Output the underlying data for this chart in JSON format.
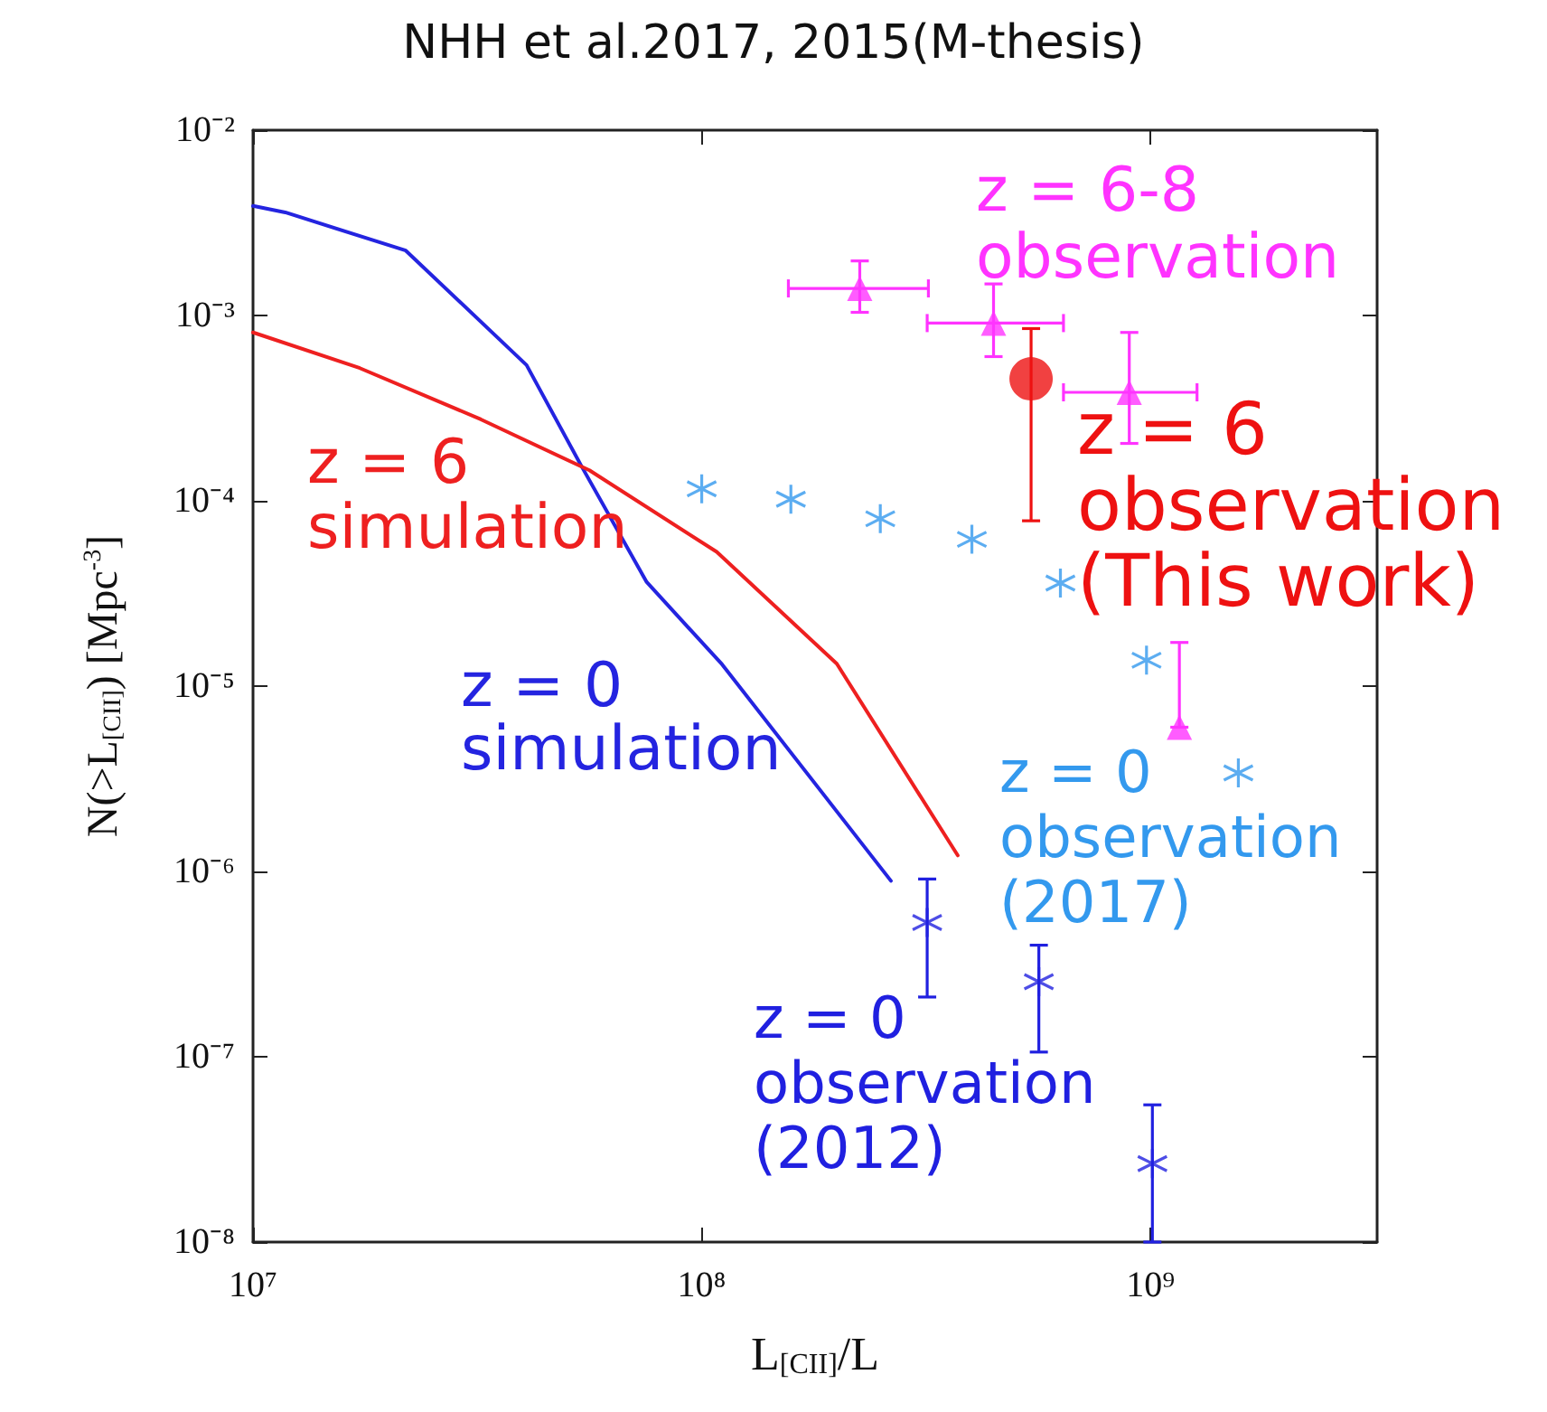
{
  "chart_data": {
    "type": "scatter",
    "title": "NHH et al.2017, 2015(M-thesis)",
    "xlabel": "L$_{[CII]}$/L",
    "ylabel": "N(>L$_{[CII]}$) [Mpc$^{-3}$]",
    "log": "xy",
    "grid": false,
    "legend": false,
    "xlim": [
      10000000,
      3200000000
    ],
    "ylim": [
      1e-08,
      0.01
    ],
    "xticks": [
      {
        "value": 10000000,
        "label": "10⁷"
      },
      {
        "value": 100000000,
        "label": "10⁸"
      },
      {
        "value": 1000000000,
        "label": "10⁹"
      }
    ],
    "yticks": [
      {
        "value": 1e-08,
        "label": "10⁻⁸"
      },
      {
        "value": 1e-07,
        "label": "10⁻⁷"
      },
      {
        "value": 1e-06,
        "label": "10⁻⁶"
      },
      {
        "value": 1e-05,
        "label": "10⁻⁵"
      },
      {
        "value": 0.0001,
        "label": "10⁻⁴"
      },
      {
        "value": 0.001,
        "label": "10⁻³"
      },
      {
        "value": 0.01,
        "label": "10⁻²"
      }
    ],
    "series": [
      {
        "name": "z = 0\nsimulation",
        "type": "line",
        "marker": "none",
        "line_style": "solid",
        "color": "#2424e0",
        "x": [
          10000000,
          11800000,
          21900000,
          40700000,
          53700000,
          75400000,
          111000000,
          264000000
        ],
        "values": [
          0.0039,
          0.0036,
          0.00224,
          0.00054,
          0.000157,
          3.64e-05,
          1.31e-05,
          8.9e-07
        ]
      },
      {
        "name": "z = 6\nsimulation",
        "type": "line",
        "marker": "none",
        "line_style": "solid",
        "color": "#ee2020",
        "x": [
          10000000,
          17300000,
          32200000,
          56200000,
          108000000,
          200000000,
          372000000
        ],
        "values": [
          0.00081,
          0.00052,
          0.000275,
          0.000146,
          5.3e-05,
          1.32e-05,
          1.22e-06
        ]
      },
      {
        "name": "z = 0\nobservation\n(2012)",
        "marker": "cross",
        "color": "#2020e0",
        "x": [
          318000000,
          564000000,
          1010000000
        ],
        "values": [
          5.3e-07,
          2.54e-07,
          2.65e-08
        ],
        "errors": [
          [
            2.1e-07,
            9.1e-07
          ],
          [
            1.06e-07,
            4e-07
          ],
          [
            1e-08,
            5.5e-08
          ]
        ]
      },
      {
        "name": "z = 0\nobservation\n(2017)",
        "marker": "cross",
        "color": "#3399ee",
        "x": [
          100000000,
          158000000,
          250000000,
          400000000,
          630000000,
          980000000,
          1570000000
        ],
        "values": [
          0.000116,
          0.000102,
          8e-05,
          6.2e-05,
          3.6e-05,
          1.38e-05,
          3.4e-06
        ]
      },
      {
        "name": "z = 6-8\nobservation",
        "marker": "triangle",
        "color": "#ff33ff",
        "x": [
          225000000,
          447000000,
          897000000
        ],
        "values": [
          0.0014,
          0.00091,
          0.000385
        ],
        "errors": [
          [
            0.00104,
            0.00197
          ],
          [
            0.0006,
            0.00148
          ],
          [
            0.000204,
            0.00081
          ]
        ],
        "xerrors": [
          [
            156000000,
            320000000
          ],
          [
            318000000,
            640000000
          ],
          [
            640000000,
            1270000000
          ]
        ]
      },
      {
        "marker": "triangle",
        "color": "#ff33ff",
        "x": [
          1160000000
        ],
        "values": [
          6e-06
        ],
        "errors": [
          [
            6e-06,
            1.72e-05
          ]
        ]
      },
      {
        "name": "z = 6\nobservation\n(This work)",
        "marker": "circle",
        "color": "#ee1111",
        "x": [
          542000000
        ],
        "values": [
          0.000455
        ],
        "errors": [
          [
            7.8e-05,
            0.00085
          ]
        ]
      }
    ]
  }
}
